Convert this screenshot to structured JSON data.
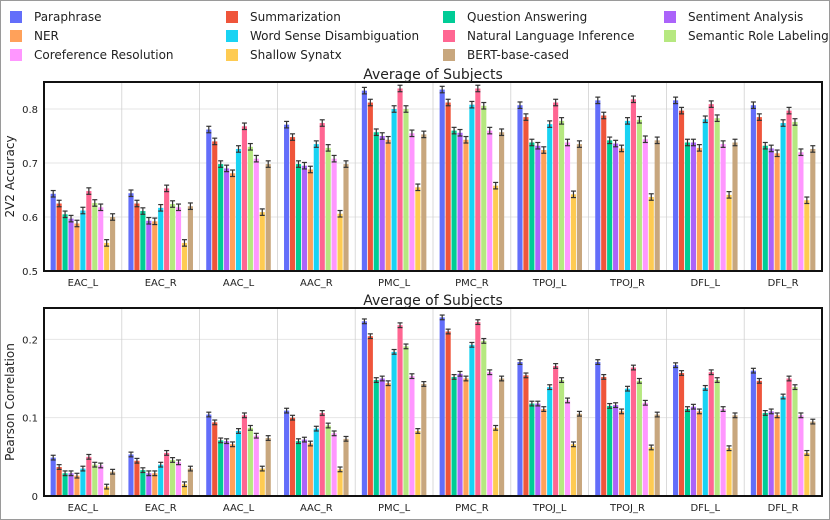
{
  "legend": [
    {
      "name": "Paraphrase",
      "color": "#636efa"
    },
    {
      "name": "Summarization",
      "color": "#ef553b"
    },
    {
      "name": "Question Answering",
      "color": "#00cc96"
    },
    {
      "name": "Sentiment Analysis",
      "color": "#ab63fa"
    },
    {
      "name": "NER",
      "color": "#ffa15a"
    },
    {
      "name": "Word Sense Disambiguation",
      "color": "#19d3f3"
    },
    {
      "name": "Natural Language Inference",
      "color": "#ff6692"
    },
    {
      "name": "Semantic Role Labeling",
      "color": "#b6e880"
    },
    {
      "name": "Coreference Resolution",
      "color": "#ff97ff"
    },
    {
      "name": "Shallow Synatx",
      "color": "#fecb52"
    },
    {
      "name": "BERT-base-cased",
      "color": "#c8a77e"
    }
  ],
  "chart_data": [
    {
      "type": "bar",
      "title": "Average of Subjects",
      "xlabel": "",
      "ylabel": "2V2 Accuracy",
      "ylim": [
        0.5,
        0.85
      ],
      "yticks": [
        0.5,
        0.6,
        0.7,
        0.8
      ],
      "ytick_labels": [
        "0.5",
        "0.6",
        "0.7",
        "0.8"
      ],
      "categories": [
        "EAC_L",
        "EAC_R",
        "AAC_L",
        "AAC_R",
        "PMC_L",
        "PMC_R",
        "TPOJ_L",
        "TPOJ_R",
        "DFL_L",
        "DFL_R"
      ],
      "series": [
        {
          "name": "Paraphrase",
          "values": [
            0.643,
            0.644,
            0.762,
            0.771,
            0.834,
            0.836,
            0.807,
            0.816,
            0.816,
            0.807
          ]
        },
        {
          "name": "Summarization",
          "values": [
            0.625,
            0.625,
            0.74,
            0.748,
            0.812,
            0.812,
            0.785,
            0.788,
            0.797,
            0.785
          ]
        },
        {
          "name": "Question Answering",
          "values": [
            0.605,
            0.611,
            0.698,
            0.698,
            0.757,
            0.76,
            0.738,
            0.742,
            0.738,
            0.732
          ]
        },
        {
          "name": "Sentiment Analysis",
          "values": [
            0.597,
            0.593,
            0.69,
            0.695,
            0.75,
            0.756,
            0.732,
            0.736,
            0.738,
            0.727
          ]
        },
        {
          "name": "NER",
          "values": [
            0.588,
            0.592,
            0.681,
            0.688,
            0.743,
            0.743,
            0.724,
            0.727,
            0.728,
            0.718
          ]
        },
        {
          "name": "Word Sense Disambiguation",
          "values": [
            0.612,
            0.617,
            0.726,
            0.735,
            0.8,
            0.808,
            0.772,
            0.778,
            0.781,
            0.774
          ]
        },
        {
          "name": "Natural Language Inference",
          "values": [
            0.648,
            0.653,
            0.768,
            0.774,
            0.838,
            0.838,
            0.812,
            0.818,
            0.809,
            0.797
          ]
        },
        {
          "name": "Semantic Role Labeling",
          "values": [
            0.626,
            0.624,
            0.73,
            0.728,
            0.8,
            0.806,
            0.778,
            0.78,
            0.783,
            0.776
          ]
        },
        {
          "name": "Coreference Resolution",
          "values": [
            0.618,
            0.618,
            0.708,
            0.708,
            0.755,
            0.76,
            0.738,
            0.744,
            0.735,
            0.72
          ]
        },
        {
          "name": "Shallow Synatx",
          "values": [
            0.552,
            0.552,
            0.609,
            0.606,
            0.655,
            0.658,
            0.642,
            0.637,
            0.641,
            0.631
          ]
        },
        {
          "name": "BERT-base-cased",
          "values": [
            0.6,
            0.62,
            0.698,
            0.698,
            0.753,
            0.757,
            0.735,
            0.742,
            0.738,
            0.726
          ]
        }
      ],
      "error": 0.006
    },
    {
      "type": "bar",
      "title": "Average of Subjects",
      "xlabel": "",
      "ylabel": "Pearson Correlation",
      "ylim": [
        0,
        0.24
      ],
      "yticks": [
        0,
        0.1,
        0.2
      ],
      "ytick_labels": [
        "0",
        "0.1",
        "0.2"
      ],
      "categories": [
        "EAC_L",
        "EAC_R",
        "AAC_L",
        "AAC_R",
        "PMC_L",
        "PMC_R",
        "TPOJ_L",
        "TPOJ_R",
        "DFL_L",
        "DFL_R"
      ],
      "series": [
        {
          "name": "Paraphrase",
          "values": [
            0.049,
            0.053,
            0.104,
            0.109,
            0.223,
            0.228,
            0.171,
            0.171,
            0.167,
            0.16
          ]
        },
        {
          "name": "Summarization",
          "values": [
            0.037,
            0.045,
            0.094,
            0.1,
            0.204,
            0.21,
            0.154,
            0.152,
            0.157,
            0.147
          ]
        },
        {
          "name": "Question Answering",
          "values": [
            0.029,
            0.033,
            0.071,
            0.07,
            0.148,
            0.152,
            0.118,
            0.115,
            0.111,
            0.106
          ]
        },
        {
          "name": "Sentiment Analysis",
          "values": [
            0.029,
            0.029,
            0.07,
            0.072,
            0.15,
            0.156,
            0.118,
            0.116,
            0.114,
            0.108
          ]
        },
        {
          "name": "NER",
          "values": [
            0.026,
            0.029,
            0.066,
            0.067,
            0.144,
            0.15,
            0.111,
            0.108,
            0.108,
            0.103
          ]
        },
        {
          "name": "Word Sense Disambiguation",
          "values": [
            0.035,
            0.04,
            0.083,
            0.086,
            0.184,
            0.193,
            0.139,
            0.137,
            0.138,
            0.127
          ]
        },
        {
          "name": "Natural Language Inference",
          "values": [
            0.05,
            0.055,
            0.103,
            0.106,
            0.218,
            0.222,
            0.166,
            0.164,
            0.158,
            0.15
          ]
        },
        {
          "name": "Semantic Role Labeling",
          "values": [
            0.04,
            0.046,
            0.087,
            0.09,
            0.191,
            0.198,
            0.148,
            0.147,
            0.148,
            0.139
          ]
        },
        {
          "name": "Coreference Resolution",
          "values": [
            0.039,
            0.043,
            0.077,
            0.08,
            0.153,
            0.158,
            0.122,
            0.119,
            0.111,
            0.103
          ]
        },
        {
          "name": "Shallow Synatx",
          "values": [
            0.012,
            0.015,
            0.035,
            0.034,
            0.083,
            0.087,
            0.066,
            0.062,
            0.061,
            0.055
          ]
        },
        {
          "name": "BERT-base-cased",
          "values": [
            0.031,
            0.035,
            0.074,
            0.073,
            0.143,
            0.15,
            0.105,
            0.104,
            0.103,
            0.095
          ]
        }
      ],
      "error": 0.003
    }
  ]
}
